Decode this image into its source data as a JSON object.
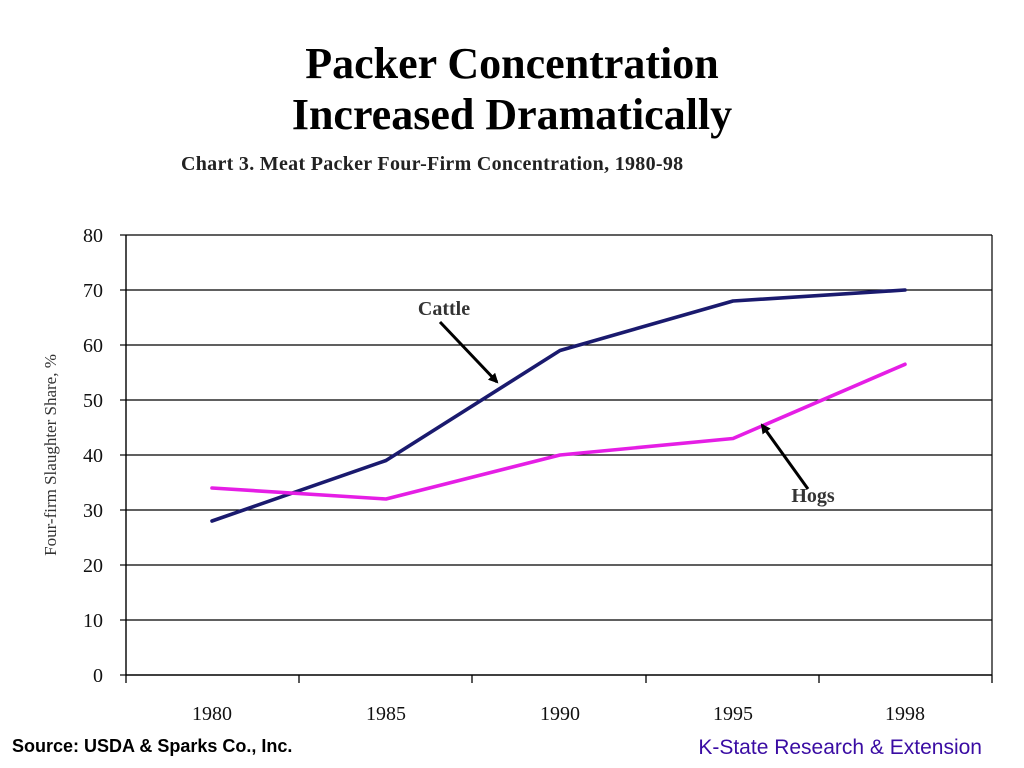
{
  "slide": {
    "title_line1": "Packer Concentration",
    "title_line2": "Increased Dramatically",
    "source": "Source:  USDA & Sparks Co., Inc.",
    "brand": "K-State Research & Extension"
  },
  "colors": {
    "cattle": "#1a1a6e",
    "hogs": "#e51ee5",
    "brand": "#3a0ca3",
    "gridline": "#000000"
  },
  "chart_data": {
    "type": "line",
    "title": "Chart 3.  Meat Packer Four-Firm Concentration, 1980-98",
    "xlabel": "",
    "ylabel": "Four-firm Slaughter Share, %",
    "categories": [
      "1980",
      "1985",
      "1990",
      "1995",
      "1998"
    ],
    "ylim": [
      0,
      80
    ],
    "yticks": [
      0,
      10,
      20,
      30,
      40,
      50,
      60,
      70,
      80
    ],
    "grid": true,
    "series": [
      {
        "name": "Cattle",
        "values": [
          28,
          39,
          59,
          68,
          70
        ]
      },
      {
        "name": "Hogs",
        "values": [
          34,
          32,
          40,
          43,
          56.5
        ]
      }
    ],
    "annotations": [
      {
        "text": "Cattle",
        "series": "Cattle",
        "arrow_to": {
          "x": "1985-1990",
          "y": 52
        }
      },
      {
        "text": "Hogs",
        "series": "Hogs",
        "arrow_to": {
          "x": "1995",
          "y": 46
        }
      }
    ]
  }
}
